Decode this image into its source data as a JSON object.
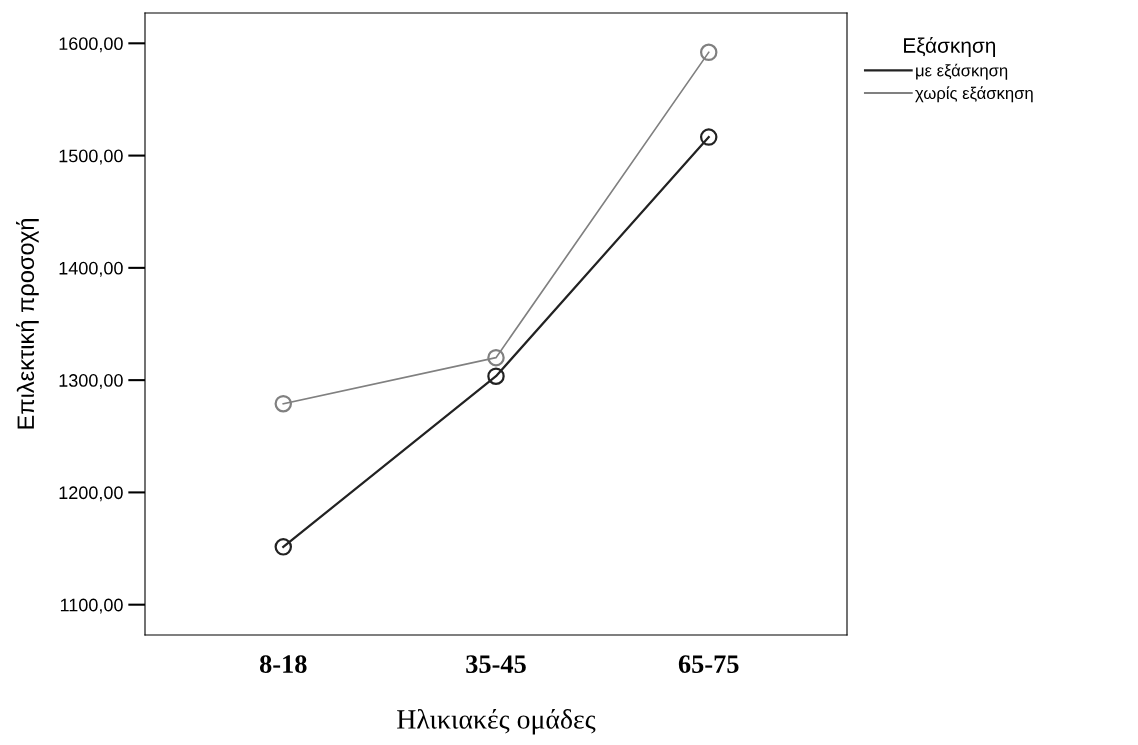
{
  "chart_data": {
    "type": "line",
    "xlabel": "Ηλικιακές ομάδες",
    "ylabel": "Επιλεκτική προσοχή",
    "legend_title": "Εξάσκηση",
    "categories": [
      "8-18",
      "35-45",
      "65-75"
    ],
    "series": [
      {
        "name": "με εξάσκηση",
        "color": "#222222",
        "values": [
          1151.5,
          1303.5,
          1516.5
        ]
      },
      {
        "name": "χωρίς εξάσκηση",
        "color": "#808080",
        "values": [
          1279,
          1320,
          1592
        ]
      }
    ],
    "ylim": [
      1073,
      1627
    ],
    "yticks": [
      {
        "value": 1100,
        "label": "1100,00"
      },
      {
        "value": 1200,
        "label": "1200,00"
      },
      {
        "value": 1300,
        "label": "1300,00"
      },
      {
        "value": 1400,
        "label": "1400,00"
      },
      {
        "value": 1500,
        "label": "1500,00"
      },
      {
        "value": 1600,
        "label": "1600,00"
      }
    ],
    "grid": false,
    "legend": "top right",
    "marker": "circle",
    "line_style": "solid"
  }
}
